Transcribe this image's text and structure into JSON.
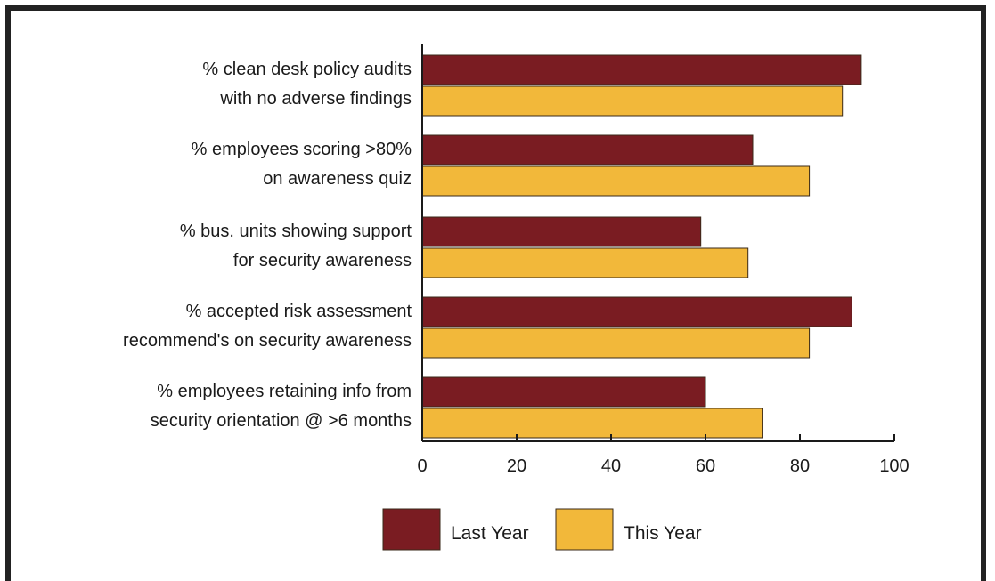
{
  "chart_data": {
    "type": "bar",
    "orientation": "horizontal",
    "categories": [
      [
        "% clean desk policy audits",
        "with no adverse findings"
      ],
      [
        "% employees scoring >80%",
        "on awareness quiz"
      ],
      [
        "% bus. units showing support",
        "for security awareness"
      ],
      [
        "% accepted risk assessment",
        "recommend's on security awareness"
      ],
      [
        "% employees retaining info from",
        "security orientation @ >6 months"
      ]
    ],
    "series": [
      {
        "name": "Last Year",
        "color": "#7a1c22",
        "values": [
          93,
          70,
          59,
          91,
          60
        ]
      },
      {
        "name": "This Year",
        "color": "#f2b83a",
        "values": [
          89,
          82,
          69,
          82,
          72
        ]
      }
    ],
    "xlim": [
      0,
      100
    ],
    "xticks": [
      "0",
      "20",
      "40",
      "60",
      "80",
      "100"
    ],
    "xtick_values": [
      0,
      20,
      40,
      60,
      80,
      100
    ],
    "legend_position": "bottom",
    "grid": false
  }
}
